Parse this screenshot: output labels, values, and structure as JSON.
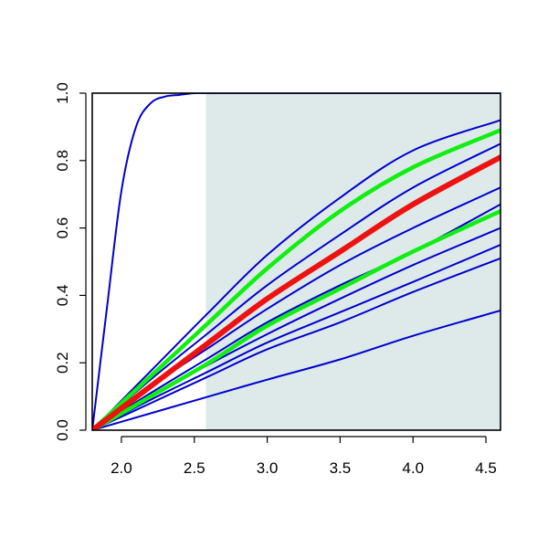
{
  "chart_data": {
    "type": "line",
    "title": "",
    "xlabel": "",
    "ylabel": "",
    "xlim": [
      1.8,
      4.6
    ],
    "ylim": [
      0.0,
      1.0
    ],
    "x_ticks": [
      2.0,
      2.5,
      3.0,
      3.5,
      4.0,
      4.5
    ],
    "x_tick_labels": [
      "2.0",
      "2.5",
      "3.0",
      "3.5",
      "4.0",
      "4.5"
    ],
    "y_ticks": [
      0.0,
      0.2,
      0.4,
      0.6,
      0.8,
      1.0
    ],
    "y_tick_labels": [
      "0.0",
      "0.2",
      "0.4",
      "0.6",
      "0.8",
      "1.0"
    ],
    "grid": false,
    "legend": "none",
    "shaded_region": {
      "x_from": 2.58,
      "x_to": 4.6,
      "y_from": 0.0,
      "y_to": 1.0,
      "color": "#deeaea"
    },
    "series": [
      {
        "role": "sample",
        "color": "#0000cc",
        "x": [
          1.8,
          1.9,
          2.0,
          2.1,
          2.2,
          2.3,
          2.4,
          2.5,
          2.6,
          3.0,
          3.5,
          4.0,
          4.6
        ],
        "y": [
          0.0,
          0.36,
          0.71,
          0.9,
          0.97,
          0.99,
          0.995,
          1.0,
          1.0,
          1.0,
          1.0,
          1.0,
          1.0
        ]
      },
      {
        "role": "sample",
        "color": "#0000cc",
        "x": [
          1.8,
          2.2,
          2.6,
          3.0,
          3.5,
          4.0,
          4.6
        ],
        "y": [
          0.0,
          0.175,
          0.35,
          0.52,
          0.69,
          0.83,
          0.92
        ]
      },
      {
        "role": "sample",
        "color": "#0000cc",
        "x": [
          1.8,
          2.2,
          2.6,
          3.0,
          3.5,
          4.0,
          4.6
        ],
        "y": [
          0.0,
          0.15,
          0.29,
          0.43,
          0.58,
          0.72,
          0.85
        ]
      },
      {
        "role": "sample",
        "color": "#0000cc",
        "x": [
          1.8,
          2.2,
          2.6,
          3.0,
          3.5,
          4.0,
          4.6
        ],
        "y": [
          0.0,
          0.13,
          0.245,
          0.36,
          0.49,
          0.6,
          0.72
        ]
      },
      {
        "role": "sample",
        "color": "#0000cc",
        "x": [
          1.8,
          2.2,
          2.6,
          3.0,
          3.5,
          4.0,
          4.6
        ],
        "y": [
          0.0,
          0.11,
          0.215,
          0.32,
          0.43,
          0.53,
          0.67
        ]
      },
      {
        "role": "sample",
        "color": "#0000cc",
        "x": [
          1.8,
          2.2,
          2.6,
          3.0,
          3.5,
          4.0,
          4.6
        ],
        "y": [
          0.0,
          0.1,
          0.195,
          0.285,
          0.39,
          0.49,
          0.6
        ]
      },
      {
        "role": "sample",
        "color": "#0000cc",
        "x": [
          1.8,
          2.2,
          2.6,
          3.0,
          3.5,
          4.0,
          4.6
        ],
        "y": [
          0.0,
          0.09,
          0.175,
          0.26,
          0.35,
          0.44,
          0.55
        ]
      },
      {
        "role": "sample",
        "color": "#0000cc",
        "x": [
          1.8,
          2.2,
          2.6,
          3.0,
          3.5,
          4.0,
          4.6
        ],
        "y": [
          0.0,
          0.08,
          0.16,
          0.24,
          0.32,
          0.41,
          0.51
        ]
      },
      {
        "role": "sample",
        "color": "#0000cc",
        "x": [
          1.8,
          2.6,
          3.0,
          3.5,
          4.0,
          4.6
        ],
        "y": [
          0.0,
          0.1,
          0.15,
          0.21,
          0.28,
          0.355
        ]
      },
      {
        "role": "band",
        "color": "#11ee11",
        "x": [
          1.8,
          2.2,
          2.6,
          3.0,
          3.5,
          4.0,
          4.6
        ],
        "y": [
          0.0,
          0.16,
          0.32,
          0.48,
          0.65,
          0.78,
          0.89
        ]
      },
      {
        "role": "band",
        "color": "#11ee11",
        "x": [
          1.8,
          2.2,
          2.6,
          3.0,
          3.5,
          4.0,
          4.6
        ],
        "y": [
          0.0,
          0.1,
          0.2,
          0.31,
          0.42,
          0.53,
          0.65
        ]
      },
      {
        "role": "median",
        "color": "#ee1111",
        "x": [
          1.8,
          2.2,
          2.6,
          3.0,
          3.5,
          4.0,
          4.6
        ],
        "y": [
          0.0,
          0.13,
          0.26,
          0.39,
          0.53,
          0.67,
          0.81
        ]
      }
    ]
  }
}
